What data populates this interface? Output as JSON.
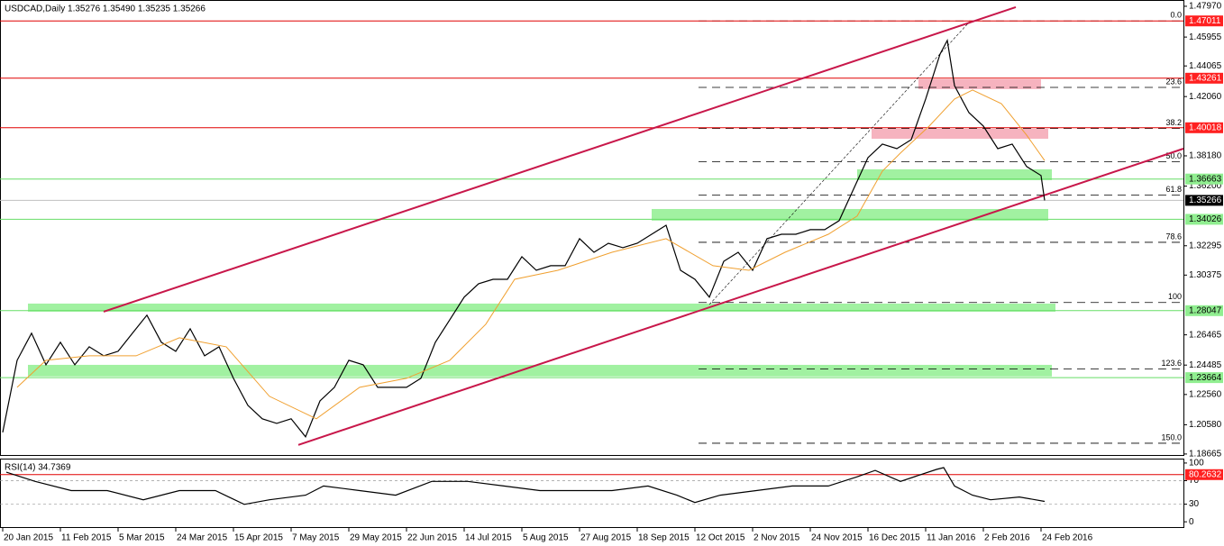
{
  "chart_data": [
    {
      "type": "line",
      "title": "USDCAD,Daily  1.35276 1.35490 1.35235 1.35266",
      "xlim": [
        -0.75,
        327.5
      ],
      "ylim": [
        1.186,
        1.4838
      ],
      "xticks": [
        {
          "value": 0,
          "label": "20 Jan 2015"
        },
        {
          "value": 16,
          "label": "11 Feb 2015"
        },
        {
          "value": 32,
          "label": "5 Mar 2015"
        },
        {
          "value": 48,
          "label": "24 Mar 2015"
        },
        {
          "value": 64,
          "label": "15 Apr 2015"
        },
        {
          "value": 80,
          "label": "7 May 2015"
        },
        {
          "value": 96,
          "label": "29 May 2015"
        },
        {
          "value": 112,
          "label": "22 Jun 2015"
        },
        {
          "value": 128,
          "label": "14 Jul 2015"
        },
        {
          "value": 144,
          "label": "5 Aug 2015"
        },
        {
          "value": 160,
          "label": "27 Aug 2015"
        },
        {
          "value": 176,
          "label": "18 Sep 2015"
        },
        {
          "value": 192,
          "label": "12 Oct 2015"
        },
        {
          "value": 208,
          "label": "2 Nov 2015"
        },
        {
          "value": 224,
          "label": "24 Nov 2015"
        },
        {
          "value": 240,
          "label": "16 Dec 2015"
        },
        {
          "value": 256,
          "label": "11 Jan 2016"
        },
        {
          "value": 272,
          "label": "2 Feb 2016"
        },
        {
          "value": 288,
          "label": "24 Feb 2016"
        }
      ],
      "yticks": [
        {
          "value": 1.4797,
          "label": "1.47970"
        },
        {
          "value": 1.45955,
          "label": "1.45955"
        },
        {
          "value": 1.44065,
          "label": "1.44065"
        },
        {
          "value": 1.4206,
          "label": "1.42060"
        },
        {
          "value": 1.3818,
          "label": "1.38180"
        },
        {
          "value": 1.362,
          "label": "1.36200"
        },
        {
          "value": 1.32295,
          "label": "1.32295"
        },
        {
          "value": 1.30375,
          "label": "1.30375"
        },
        {
          "value": 1.26465,
          "label": "1.26465"
        },
        {
          "value": 1.24485,
          "label": "1.24485"
        },
        {
          "value": 1.2256,
          "label": "1.22560"
        },
        {
          "value": 1.2058,
          "label": "1.20580"
        },
        {
          "value": 1.18665,
          "label": "1.18665"
        }
      ],
      "zones": [
        {
          "x": [
            7,
            292
          ],
          "range": [
            1.2798,
            1.2851
          ],
          "color": "#90ee90"
        },
        {
          "x": [
            7,
            291
          ],
          "range": [
            1.2374,
            1.245
          ],
          "color": "#90ee90"
        },
        {
          "x": [
            180,
            290
          ],
          "range": [
            1.3394,
            1.347
          ],
          "color": "#90ee90"
        },
        {
          "x": [
            237,
            291
          ],
          "range": [
            1.3659,
            1.373
          ],
          "color": "#90ee90"
        },
        {
          "x": [
            254,
            288
          ],
          "range": [
            1.4255,
            1.4319
          ],
          "color": "#f4a6b4"
        },
        {
          "x": [
            241,
            290
          ],
          "range": [
            1.393,
            1.3995
          ],
          "color": "#f4a6b4"
        }
      ],
      "levels": {
        "values": [
          1.47011,
          1.43261,
          1.40018,
          1.36663,
          1.35266,
          1.34026,
          1.28047,
          1.23664
        ],
        "value_labels": [
          "1.47011",
          "1.43261",
          "1.40018",
          "1.36663",
          "1.35266",
          "1.34026",
          "1.28047",
          "1.23664"
        ],
        "colors": [
          "#e00000",
          "#e00000",
          "#e00000",
          "#66dd66",
          "#c0c0c0",
          "#66dd66",
          "#66dd66",
          "#66dd66"
        ],
        "label_colors": [
          "#ff2020",
          "#ff2020",
          "#ff2020",
          "#90ee90",
          "#000000",
          "#90ee90",
          "#90ee90",
          "#90ee90"
        ],
        "text_colors": [
          "#ffffff",
          "#ffffff",
          "#ffffff",
          "#000000",
          "#ffffff",
          "#000000",
          "#000000",
          "#000000"
        ]
      },
      "fib": {
        "start": 193,
        "levels": [
          {
            "value": 0,
            "label": "0.0"
          },
          23.6,
          38.2,
          {
            "value": 50,
            "label": "50.0"
          },
          61.8,
          78.6,
          100,
          123.6,
          {
            "value": 150,
            "label": "150.0"
          }
        ],
        "prices": [
          1.4701,
          1.4266,
          1.3997,
          1.378,
          1.3562,
          1.3252,
          1.2858,
          1.2423,
          1.1937
        ]
      },
      "trendlines": [
        {
          "x": [
            28,
            281
          ],
          "values": [
            1.2798,
            1.4791
          ],
          "color": "#c8174a",
          "width": 2
        },
        {
          "x": [
            82,
            327.5
          ],
          "values": [
            1.1926,
            1.3865
          ],
          "color": "#c8174a",
          "width": 2
        },
        {
          "x": [
            196,
            268
          ],
          "values": [
            1.2845,
            1.4691
          ],
          "color": "#000000",
          "width": 0.6,
          "dashed": true
        }
      ],
      "series": [
        {
          "color": "#000000",
          "x": [
            0,
            4,
            8,
            12,
            16,
            20,
            24,
            28,
            32,
            36,
            40,
            44,
            48,
            52,
            56,
            60,
            64,
            68,
            72,
            76,
            80,
            84,
            88,
            92,
            96,
            100,
            104,
            108,
            112,
            116,
            120,
            124,
            128,
            132,
            136,
            140,
            144,
            148,
            152,
            156,
            160,
            164,
            168,
            172,
            176,
            180,
            184,
            188,
            192,
            196,
            200,
            204,
            208,
            212,
            216,
            220,
            224,
            228,
            232,
            236,
            240,
            244,
            248,
            252,
            256,
            260,
            262,
            264,
            268,
            272,
            276,
            280,
            284,
            288,
            289
          ],
          "values": [
            1.2008,
            1.248,
            1.2657,
            1.245,
            1.2598,
            1.245,
            1.2568,
            1.2509,
            1.2539,
            1.2657,
            1.2775,
            1.2598,
            1.2539,
            1.2686,
            1.2509,
            1.2568,
            1.2362,
            1.2185,
            1.2097,
            1.2067,
            1.2097,
            1.1979,
            1.2214,
            1.2303,
            1.248,
            1.245,
            1.2303,
            1.2303,
            1.2303,
            1.2362,
            1.2598,
            1.2745,
            1.2893,
            1.2981,
            1.301,
            1.301,
            1.3158,
            1.3069,
            1.3099,
            1.3099,
            1.3276,
            1.3187,
            1.3246,
            1.3217,
            1.3246,
            1.3305,
            1.3364,
            1.3069,
            1.301,
            1.2893,
            1.3128,
            1.3187,
            1.3069,
            1.3276,
            1.3305,
            1.3305,
            1.3335,
            1.3335,
            1.3394,
            1.36,
            1.3806,
            1.3895,
            1.3865,
            1.3924,
            1.419,
            1.4484,
            1.4573,
            1.4278,
            1.4101,
            1.4013,
            1.3865,
            1.3895,
            1.3748,
            1.3689,
            1.35266
          ]
        },
        {
          "color": "#f0a030",
          "x": [
            4,
            12,
            24,
            37,
            49,
            62,
            74,
            87,
            99,
            112,
            124,
            134,
            142,
            154,
            169,
            184,
            197,
            207,
            217,
            229,
            237,
            244,
            249,
            257,
            264,
            269,
            277,
            284,
            289
          ],
          "values": [
            1.2303,
            1.248,
            1.2509,
            1.2509,
            1.2627,
            1.2568,
            1.2244,
            1.2097,
            1.2303,
            1.2362,
            1.248,
            1.2716,
            1.301,
            1.3069,
            1.3187,
            1.3276,
            1.3099,
            1.3069,
            1.3187,
            1.3305,
            1.3424,
            1.3718,
            1.3836,
            1.4013,
            1.419,
            1.4249,
            1.416,
            1.3954,
            1.3787
          ]
        }
      ]
    },
    {
      "type": "line",
      "title": "RSI(14) 34.7369",
      "xlim": [
        -0.75,
        327.5
      ],
      "ylim": [
        -9,
        106
      ],
      "yticks": [
        0,
        30,
        70,
        100
      ],
      "grid_values": [
        30,
        70
      ],
      "levels": {
        "values": [
          80.2632
        ],
        "value_labels": [
          "80.2632"
        ],
        "colors": [
          "#e00000"
        ],
        "label_colors": [
          "#ff2020"
        ],
        "text_colors": [
          "#ffffff"
        ]
      },
      "series": [
        {
          "color": "#000000",
          "x": [
            1,
            9,
            19,
            29,
            39,
            49,
            59,
            67,
            74,
            84,
            89,
            99,
            109,
            119,
            129,
            139,
            149,
            159,
            169,
            179,
            187,
            192,
            199,
            209,
            219,
            229,
            237,
            242,
            249,
            259,
            261,
            264,
            269,
            274,
            282,
            289
          ],
          "values": [
            84.4,
            68.8,
            53.1,
            53.1,
            37.5,
            53.1,
            53.1,
            29.7,
            37.5,
            45.3,
            60.9,
            53.1,
            45.3,
            68.8,
            68.8,
            60.9,
            53.1,
            53.1,
            53.1,
            60.9,
            45.3,
            32.8,
            45.3,
            53.1,
            60.9,
            60.9,
            76.6,
            87.5,
            68.8,
            89.1,
            92.2,
            60.9,
            45.3,
            37.5,
            42.2,
            34.74
          ]
        }
      ]
    }
  ]
}
